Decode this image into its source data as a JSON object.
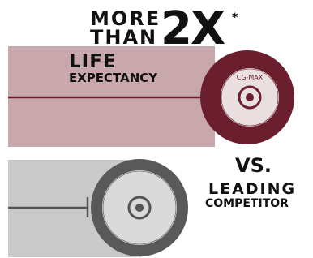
{
  "headline": {
    "line1": "MORE",
    "line2": "THAN",
    "multiplier": "2X",
    "asterisk": "*",
    "line3": "LIFE",
    "line4": "EXPECTANCY"
  },
  "wheel_label": "CG-MAX",
  "comparison": {
    "vs": "VS.",
    "line1": "LEADING",
    "line2": "COMPETITOR"
  }
}
